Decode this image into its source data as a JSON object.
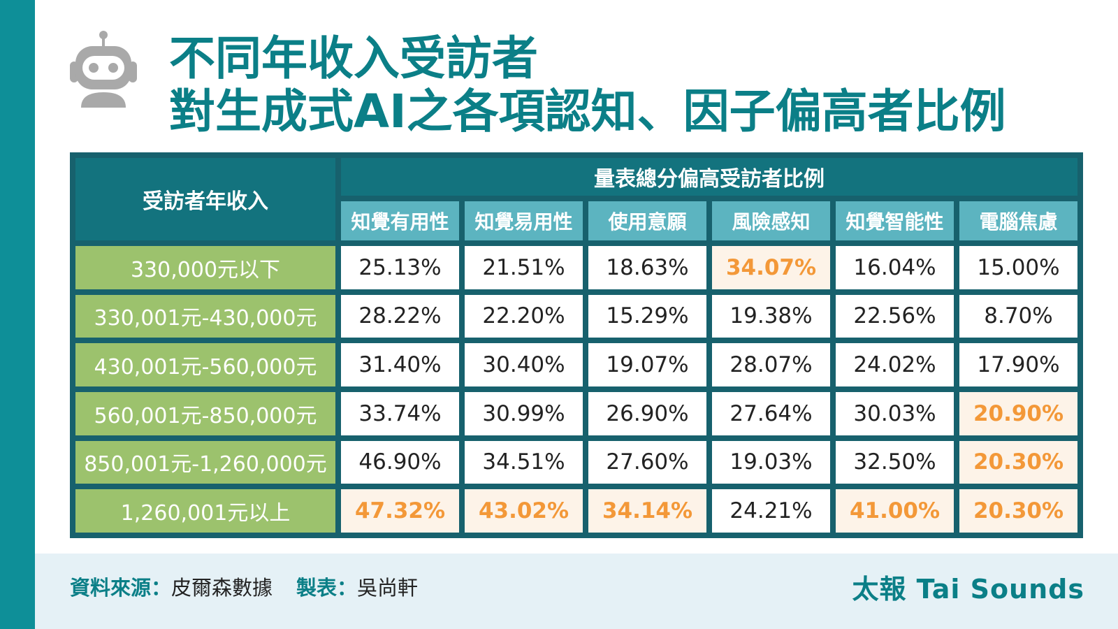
{
  "title": {
    "line1": "不同年收入受訪者",
    "line2": "對生成式AI之各項認知、因子偏高者比例"
  },
  "icons": {
    "header": "robot-icon"
  },
  "colors": {
    "accent": "#0b7f87",
    "header_dark": "#13737e",
    "header_light": "#5cb4c0",
    "row_label": "#9cc26d",
    "highlight_text": "#f39838",
    "highlight_bg": "#fdf3e8"
  },
  "chart_data": {
    "type": "table",
    "row_header": "受訪者年收入",
    "group_header": "量表總分偏高受訪者比例",
    "columns": [
      "知覺有用性",
      "知覺易用性",
      "使用意願",
      "風險感知",
      "知覺智能性",
      "電腦焦慮"
    ],
    "rows": [
      {
        "label": "330,000元以下",
        "values": [
          "25.13%",
          "21.51%",
          "18.63%",
          "34.07%",
          "16.04%",
          "15.00%"
        ],
        "highlight": [
          false,
          false,
          false,
          true,
          false,
          false
        ]
      },
      {
        "label": "330,001元-430,000元",
        "values": [
          "28.22%",
          "22.20%",
          "15.29%",
          "19.38%",
          "22.56%",
          "8.70%"
        ],
        "highlight": [
          false,
          false,
          false,
          false,
          false,
          false
        ]
      },
      {
        "label": "430,001元-560,000元",
        "values": [
          "31.40%",
          "30.40%",
          "19.07%",
          "28.07%",
          "24.02%",
          "17.90%"
        ],
        "highlight": [
          false,
          false,
          false,
          false,
          false,
          false
        ]
      },
      {
        "label": "560,001元-850,000元",
        "values": [
          "33.74%",
          "30.99%",
          "26.90%",
          "27.64%",
          "30.03%",
          "20.90%"
        ],
        "highlight": [
          false,
          false,
          false,
          false,
          false,
          true
        ]
      },
      {
        "label": "850,001元-1,260,000元",
        "values": [
          "46.90%",
          "34.51%",
          "27.60%",
          "19.03%",
          "32.50%",
          "20.30%"
        ],
        "highlight": [
          false,
          false,
          false,
          false,
          false,
          true
        ]
      },
      {
        "label": "1,260,001元以上",
        "values": [
          "47.32%",
          "43.02%",
          "34.14%",
          "24.21%",
          "41.00%",
          "20.30%"
        ],
        "highlight": [
          true,
          true,
          true,
          false,
          true,
          true
        ]
      }
    ]
  },
  "footer": {
    "source_label": "資料來源：",
    "source_value": "皮爾森數據",
    "author_label": "製表：",
    "author_value": "吳尚軒",
    "brand": "太報 Tai Sounds"
  }
}
